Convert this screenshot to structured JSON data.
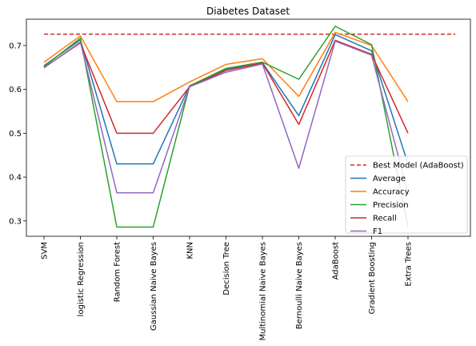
{
  "chart_data": {
    "type": "line",
    "title": "Diabetes Dataset",
    "xlabel": "",
    "ylabel": "",
    "categories": [
      "SVM",
      "logistic Regression",
      "Random Forest",
      "Gaussian Naive Bayes",
      "KNN",
      "Decision Tree",
      "Multinomial Naive Bayes",
      "Bernoulli Naive Bayes",
      "AdaBoost",
      "Gradient Boosting",
      "Extra Trees"
    ],
    "ylim": [
      0.265,
      0.76
    ],
    "yticks": [
      0.3,
      0.4,
      0.5,
      0.6,
      0.7
    ],
    "ytick_labels": [
      "0.3",
      "0.4",
      "0.5",
      "0.6",
      "0.7"
    ],
    "grid": false,
    "legend_position": "lower right",
    "reference_line": {
      "name": "Best Model (AdaBoost)",
      "value": 0.726,
      "x_range": [
        0,
        11.3
      ],
      "color": "#d62728",
      "style": "dashed"
    },
    "series": [
      {
        "name": "Average",
        "color": "#1f77b4",
        "values": [
          0.654,
          0.713,
          0.43,
          0.43,
          0.608,
          0.646,
          0.661,
          0.54,
          0.725,
          0.688,
          0.43
        ]
      },
      {
        "name": "Accuracy",
        "color": "#ff7f0e",
        "values": [
          0.662,
          0.722,
          0.572,
          0.572,
          0.617,
          0.657,
          0.67,
          0.584,
          0.73,
          0.7,
          0.572
        ]
      },
      {
        "name": "Precision",
        "color": "#2ca02c",
        "values": [
          0.652,
          0.717,
          0.286,
          0.286,
          0.608,
          0.648,
          0.662,
          0.623,
          0.744,
          0.702,
          0.286
        ]
      },
      {
        "name": "Recall",
        "color": "#d62728",
        "values": [
          0.65,
          0.706,
          0.5,
          0.5,
          0.606,
          0.643,
          0.66,
          0.52,
          0.712,
          0.68,
          0.5
        ]
      },
      {
        "name": "F1",
        "color": "#9467bd",
        "values": [
          0.649,
          0.708,
          0.364,
          0.364,
          0.606,
          0.639,
          0.658,
          0.42,
          0.71,
          0.678,
          0.364
        ]
      }
    ]
  }
}
